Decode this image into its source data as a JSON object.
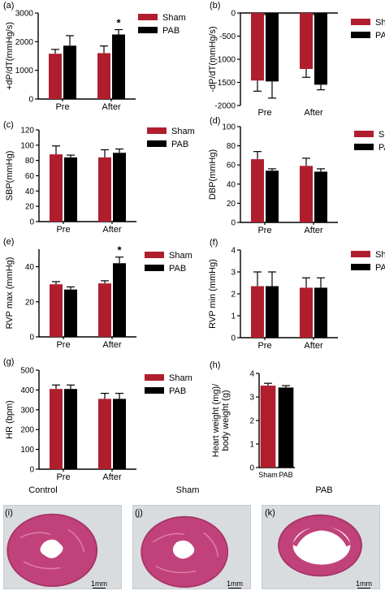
{
  "colors": {
    "sham": "#b01e2e",
    "pab": "#000000",
    "tissue": "#c1427a",
    "slide": "#d9dcdf"
  },
  "legend": {
    "sham": "Sham",
    "pab": "PAB"
  },
  "chart_data": [
    {
      "panel": "(a)",
      "type": "bar",
      "categories": [
        "Pre",
        "After"
      ],
      "ylabel": "+dP/dT(mmHg/s)",
      "ylim": [
        0,
        3000
      ],
      "yticks": [
        0,
        1000,
        2000,
        3000
      ],
      "series": [
        {
          "name": "Sham",
          "values": [
            1580,
            1600
          ],
          "errors": [
            150,
            250
          ]
        },
        {
          "name": "PAB",
          "values": [
            1860,
            2250
          ],
          "errors": [
            350,
            170
          ]
        }
      ],
      "annotations": [
        {
          "text": "*",
          "category": "After",
          "series": "PAB"
        }
      ]
    },
    {
      "panel": "(b)",
      "type": "bar",
      "categories": [
        "Pre",
        "After"
      ],
      "ylabel": "-dP/dT(mmHg/s)",
      "ylim": [
        -2000,
        0
      ],
      "yticks": [
        0,
        -500,
        -1000,
        -1500,
        -2000
      ],
      "xaxis_at_top": true,
      "series": [
        {
          "name": "Sham",
          "values": [
            -1460,
            -1210
          ],
          "errors": [
            230,
            180
          ]
        },
        {
          "name": "PAB",
          "values": [
            -1480,
            -1550
          ],
          "errors": [
            360,
            110
          ]
        }
      ]
    },
    {
      "panel": "(c)",
      "type": "bar",
      "categories": [
        "Pre",
        "After"
      ],
      "ylabel": "SBP(mmHg)",
      "ylim": [
        0,
        120
      ],
      "yticks": [
        0,
        20,
        40,
        60,
        80,
        100,
        120
      ],
      "series": [
        {
          "name": "Sham",
          "values": [
            88,
            84
          ],
          "errors": [
            11,
            10
          ]
        },
        {
          "name": "PAB",
          "values": [
            84,
            90
          ],
          "errors": [
            3,
            5
          ]
        }
      ]
    },
    {
      "panel": "(d)",
      "type": "bar",
      "categories": [
        "Pre",
        "After"
      ],
      "ylabel": "DBP(mmHg)",
      "ylim": [
        0,
        100
      ],
      "yticks": [
        0,
        20,
        40,
        60,
        80,
        100
      ],
      "series": [
        {
          "name": "Sham",
          "values": [
            66,
            59
          ],
          "errors": [
            8,
            8
          ]
        },
        {
          "name": "PAB",
          "values": [
            54,
            53
          ],
          "errors": [
            2,
            3
          ]
        }
      ]
    },
    {
      "panel": "(e)",
      "type": "bar",
      "categories": [
        "Pre",
        "After"
      ],
      "ylabel": "RVP max (mmHg)",
      "ylim": [
        0,
        50
      ],
      "yticks": [
        0,
        20,
        40
      ],
      "series": [
        {
          "name": "Sham",
          "values": [
            30,
            30.5
          ],
          "errors": [
            1.5,
            1.5
          ]
        },
        {
          "name": "PAB",
          "values": [
            27,
            42
          ],
          "errors": [
            1.5,
            3.5
          ]
        }
      ],
      "annotations": [
        {
          "text": "*",
          "category": "After",
          "series": "PAB"
        }
      ]
    },
    {
      "panel": "(f)",
      "type": "bar",
      "categories": [
        "Pre",
        "After"
      ],
      "ylabel": "RVP min (mmHg)",
      "ylim": [
        0,
        4
      ],
      "yticks": [
        0,
        1,
        2,
        3,
        4
      ],
      "series": [
        {
          "name": "Sham",
          "values": [
            2.35,
            2.28
          ],
          "errors": [
            0.65,
            0.45
          ]
        },
        {
          "name": "PAB",
          "values": [
            2.35,
            2.28
          ],
          "errors": [
            0.65,
            0.45
          ]
        }
      ]
    },
    {
      "panel": "(g)",
      "type": "bar",
      "categories": [
        "Pre",
        "After"
      ],
      "ylabel": "HR (bpm)",
      "ylim": [
        0,
        500
      ],
      "yticks": [
        0,
        100,
        200,
        300,
        400,
        500
      ],
      "series": [
        {
          "name": "Sham",
          "values": [
            405,
            355
          ],
          "errors": [
            20,
            28
          ]
        },
        {
          "name": "PAB",
          "values": [
            405,
            355
          ],
          "errors": [
            20,
            28
          ]
        }
      ]
    },
    {
      "panel": "(h)",
      "type": "bar",
      "categories": [
        "Sham",
        "PAB"
      ],
      "ylabel": "Heart weight (mg)/\nbody weight (g)",
      "ylim": [
        0,
        4
      ],
      "yticks": [
        0,
        1,
        2,
        3,
        4
      ],
      "single_series_by_category": true,
      "series": [
        {
          "name": "",
          "values": [
            3.48,
            3.4
          ],
          "errors": [
            0.1,
            0.08
          ]
        }
      ]
    }
  ],
  "histology": {
    "column_titles": [
      "Control",
      "Sham",
      "PAB"
    ],
    "panels": [
      {
        "tag": "(i)",
        "scale": "1mm"
      },
      {
        "tag": "(j)",
        "scale": "1mm"
      },
      {
        "tag": "(k)",
        "scale": "1mm"
      }
    ]
  }
}
